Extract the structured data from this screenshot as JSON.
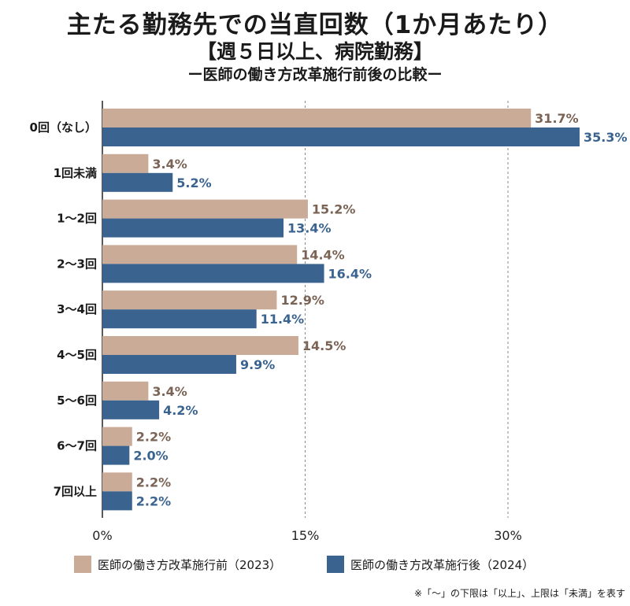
{
  "title": "主たる勤務先での当直回数（1か月あたり）",
  "subtitle": "【週５日以上、病院勤務】",
  "subtitle2": "ー医師の働き方改革施行前後の比較ー",
  "note": "※「〜」の下限は「以上」、上限は「未満」を表す",
  "colors": {
    "before": "#c9ab97",
    "after": "#3a638f",
    "before_text": "#7a6355",
    "after_text": "#3a638f",
    "grid": "#888888",
    "axis": "#222222"
  },
  "chart_data": {
    "type": "bar",
    "orientation": "horizontal",
    "categories": [
      "0回（なし）",
      "1回未満",
      "1〜2回",
      "2〜3回",
      "3〜4回",
      "4〜5回",
      "5〜6回",
      "6〜7回",
      "7回以上"
    ],
    "series": [
      {
        "name": "医師の働き方改革施行前（2023）",
        "values": [
          31.7,
          3.4,
          15.2,
          14.4,
          12.9,
          14.5,
          3.4,
          2.2,
          2.2
        ]
      },
      {
        "name": "医師の働き方改革施行後（2024）",
        "values": [
          35.3,
          5.2,
          13.4,
          16.4,
          11.4,
          9.9,
          4.2,
          2.0,
          2.2
        ]
      }
    ],
    "xlim": [
      0,
      36
    ],
    "xticks": [
      0,
      15,
      30
    ],
    "xtick_labels": [
      "0%",
      "15%",
      "30%"
    ],
    "value_suffix": "%",
    "grid": "vertical dashed at ticks",
    "legend_position": "bottom"
  }
}
